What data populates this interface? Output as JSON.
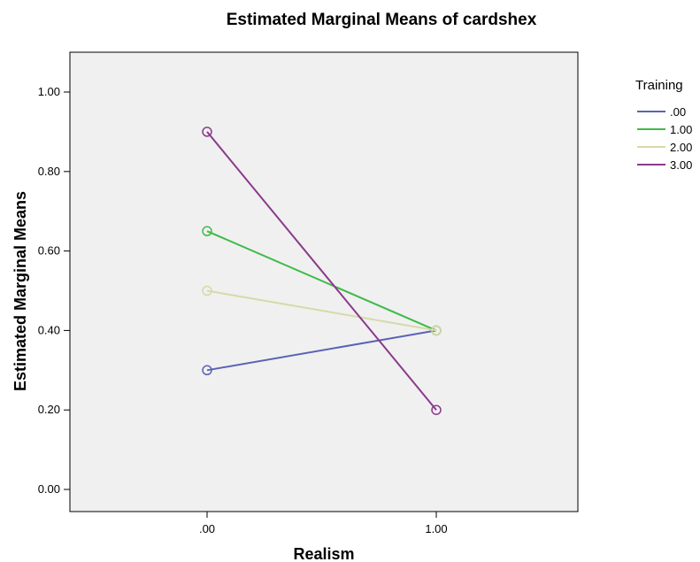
{
  "chart_data": {
    "type": "line",
    "title": "Estimated Marginal Means of cardshex",
    "xlabel": "Realism",
    "ylabel": "Estimated Marginal Means",
    "categories": [
      ".00",
      "1.00"
    ],
    "yticks": [
      "0.00",
      "0.20",
      "0.40",
      "0.60",
      "0.80",
      "1.00"
    ],
    "ylim": [
      0,
      1
    ],
    "legend_title": "Training",
    "legend_position": "top-right",
    "series": [
      {
        "name": ".00",
        "values": [
          0.3,
          0.4
        ],
        "color": "#5a63b5"
      },
      {
        "name": "1.00",
        "values": [
          0.65,
          0.4
        ],
        "color": "#3fba47"
      },
      {
        "name": "2.00",
        "values": [
          0.5,
          0.4
        ],
        "color": "#d7d9a8"
      },
      {
        "name": "3.00",
        "values": [
          0.9,
          0.2
        ],
        "color": "#8b3a8b"
      }
    ],
    "plot_background": "#f0f0f0",
    "grid": false
  }
}
